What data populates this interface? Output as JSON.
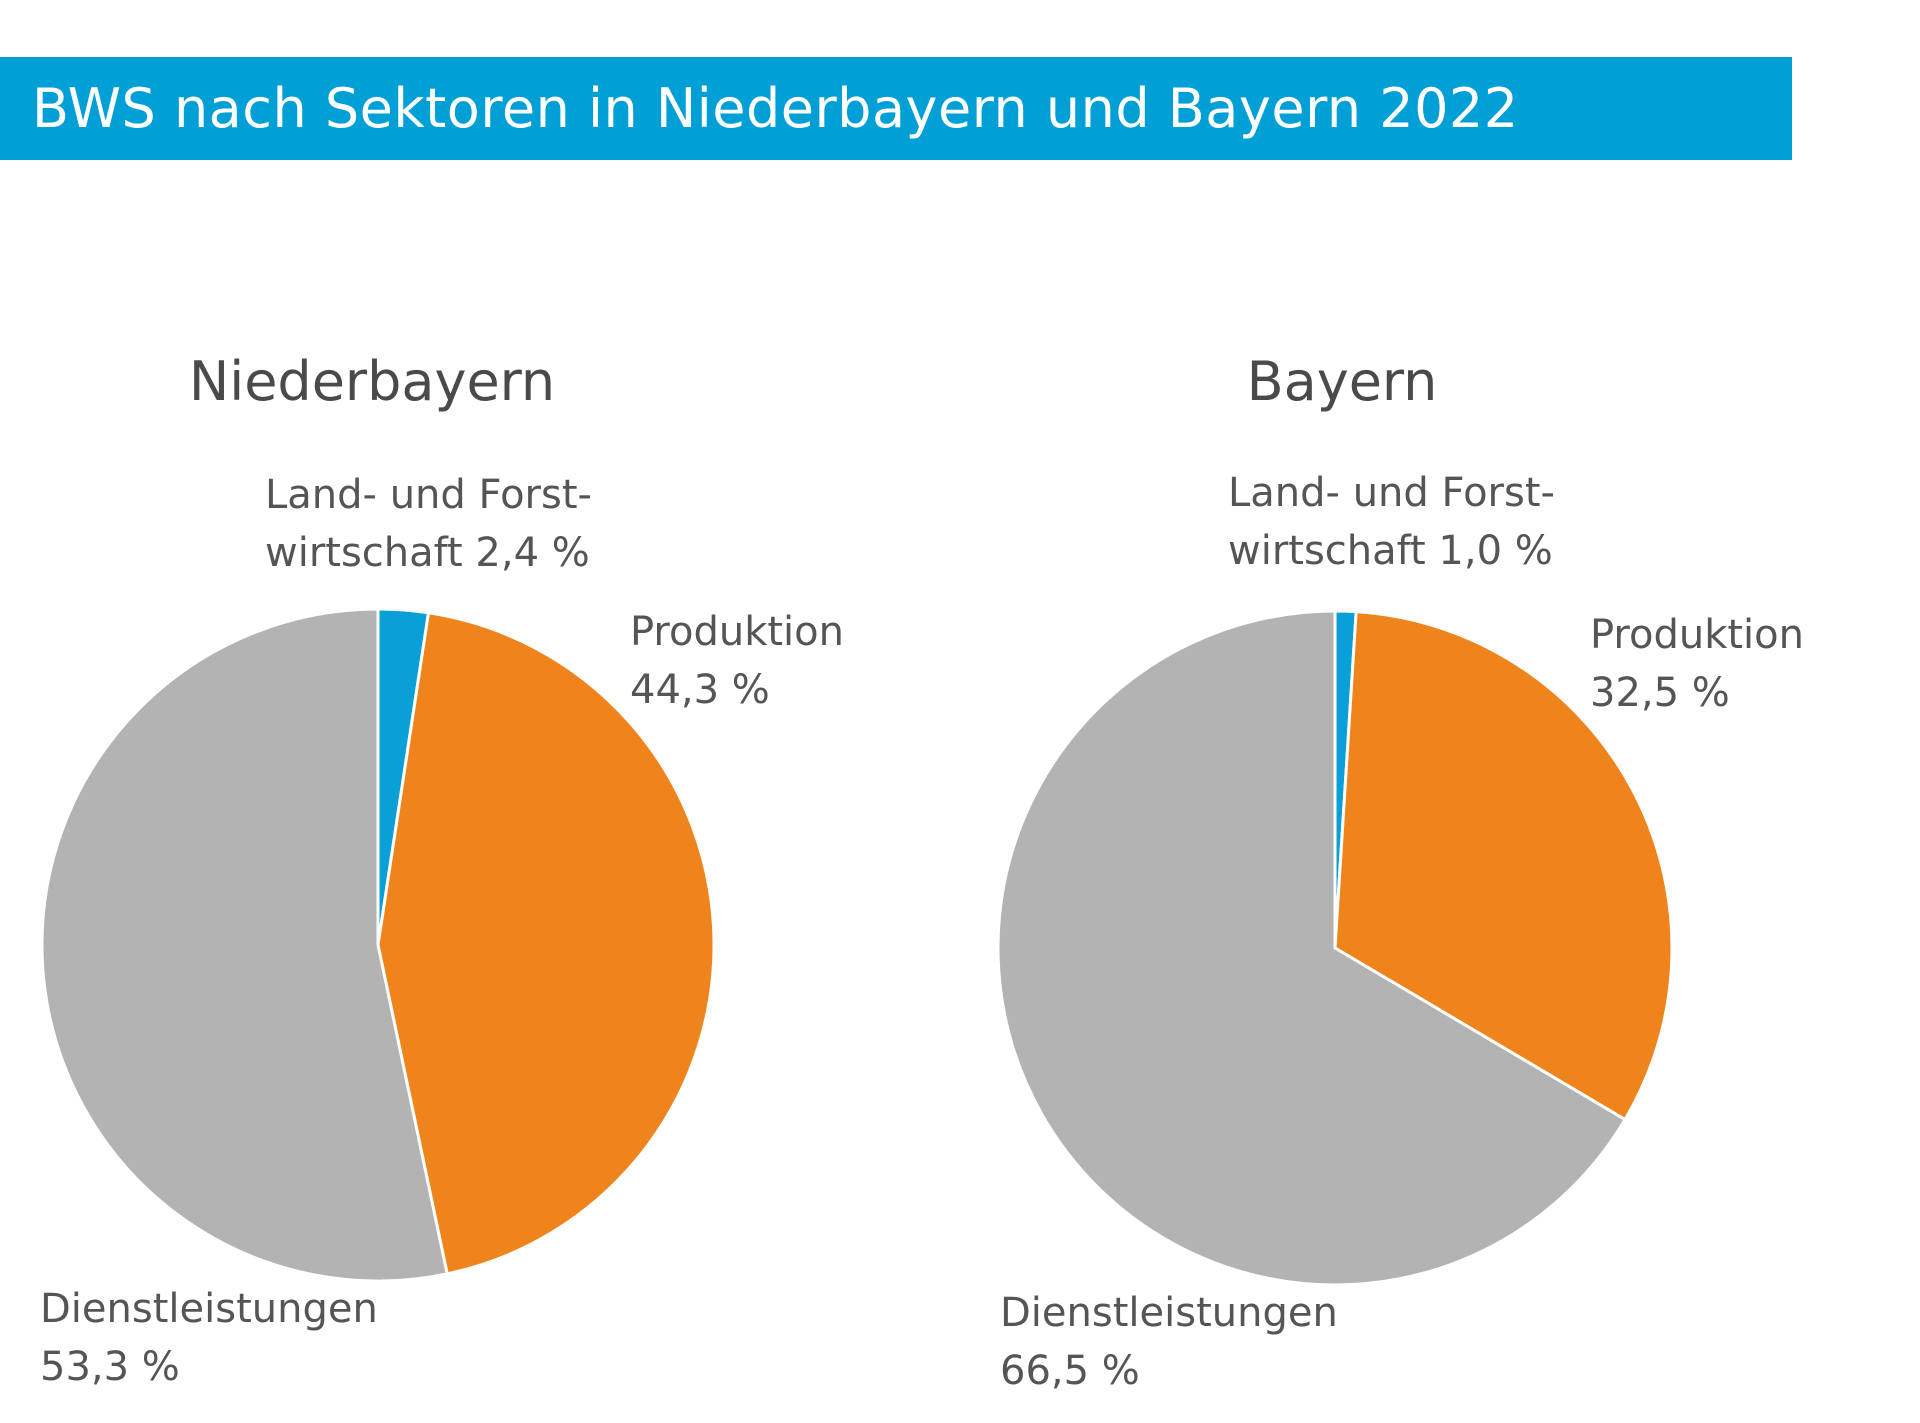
{
  "header": {
    "title": "BWS nach Sektoren in Niederbayern und Bayern 2022"
  },
  "colors": {
    "header_bg": "#009fd6",
    "land_und_forstwirtschaft": "#0b9fd8",
    "produktion": "#ef841c",
    "dienstleistungen": "#b3b3b3"
  },
  "chart_data": [
    {
      "type": "pie",
      "title": "Niederbayern",
      "slices": [
        {
          "name": "Land- und Forst-wirtschaft",
          "value": 2.4,
          "label_lines": [
            "Land- und Forst-",
            "wirtschaft 2,4 %"
          ]
        },
        {
          "name": "Produktion",
          "value": 44.3,
          "label_lines": [
            "Produktion",
            "44,3 %"
          ]
        },
        {
          "name": "Dienstleistungen",
          "value": 53.3,
          "label_lines": [
            "Dienstleistungen",
            "53,3 %"
          ]
        }
      ]
    },
    {
      "type": "pie",
      "title": "Bayern",
      "slices": [
        {
          "name": "Land- und Forst-wirtschaft",
          "value": 1.0,
          "label_lines": [
            "Land- und Forst-",
            "wirtschaft 1,0 %"
          ]
        },
        {
          "name": "Produktion",
          "value": 32.5,
          "label_lines": [
            "Produktion",
            "32,5 %"
          ]
        },
        {
          "name": "Dienstleistungen",
          "value": 66.5,
          "label_lines": [
            "Dienstleistungen",
            "66,5 %"
          ]
        }
      ]
    }
  ]
}
